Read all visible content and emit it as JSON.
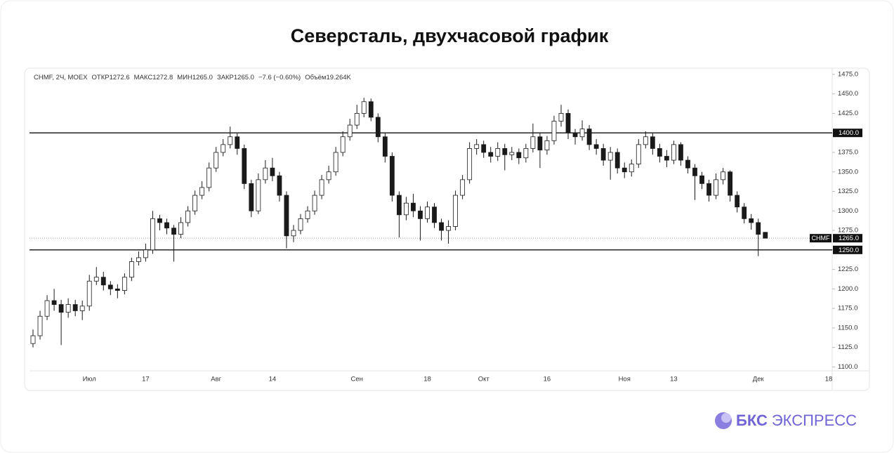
{
  "title": "Северсталь, двухчасовой график",
  "brand": {
    "bold": "БКС",
    "light": "ЭКСПРЕСС"
  },
  "chart_data": {
    "type": "candlestick",
    "legend_header": [
      "CHMF, 2Ч, MOEX",
      "ОТКР1272.6",
      "МАКС1272.8",
      "МИН1265.0",
      "ЗАКР1265.0",
      "−7.6 (−0.60%)",
      "Объём19.264K"
    ],
    "color": "#1a1a1a",
    "categories": [
      null,
      null,
      null,
      null,
      null,
      null,
      null,
      null,
      "Июл",
      null,
      null,
      null,
      null,
      null,
      null,
      null,
      "17",
      null,
      null,
      null,
      null,
      null,
      null,
      null,
      null,
      null,
      "Авг",
      null,
      null,
      null,
      null,
      null,
      null,
      null,
      "14",
      null,
      null,
      null,
      null,
      null,
      null,
      null,
      null,
      null,
      null,
      null,
      "Сен",
      null,
      null,
      null,
      null,
      null,
      null,
      null,
      null,
      null,
      "18",
      null,
      null,
      null,
      null,
      null,
      null,
      null,
      "Окт",
      null,
      null,
      null,
      null,
      null,
      null,
      null,
      null,
      "16",
      null,
      null,
      null,
      null,
      null,
      null,
      null,
      null,
      null,
      null,
      "Ноя",
      null,
      null,
      null,
      null,
      null,
      null,
      "13",
      null,
      null,
      null,
      null,
      null,
      null,
      null,
      null,
      null,
      null,
      null,
      "Дек",
      null,
      null,
      null,
      null,
      null,
      null,
      null,
      null,
      null,
      "18"
    ],
    "open": [
      1130,
      1140,
      1165,
      1185,
      1180,
      1170,
      1180,
      1172,
      1178,
      1210,
      1215,
      1205,
      1200,
      1198,
      1215,
      1235,
      1240,
      1250,
      1290,
      1285,
      1278,
      1270,
      1285,
      1300,
      1320,
      1330,
      1355,
      1375,
      1385,
      1395,
      1380,
      1335,
      1300,
      1340,
      1355,
      1345,
      1320,
      1268,
      1275,
      1290,
      1300,
      1320,
      1340,
      1350,
      1375,
      1395,
      1410,
      1425,
      1440,
      1420,
      1395,
      1370,
      1320,
      1295,
      1310,
      1300,
      1290,
      1305,
      1285,
      1275,
      1280,
      1320,
      1340,
      1380,
      1385,
      1375,
      1370,
      1380,
      1372,
      1375,
      1368,
      1380,
      1395,
      1378,
      1390,
      1415,
      1425,
      1400,
      1395,
      1405,
      1385,
      1380,
      1365,
      1375,
      1355,
      1350,
      1360,
      1385,
      1395,
      1380,
      1370,
      1365,
      1385,
      1365,
      1355,
      1345,
      1335,
      1320,
      1340,
      1350,
      1320,
      1305,
      1290,
      1285,
      1272.6,
      null,
      null,
      null,
      null,
      null,
      null,
      null,
      null,
      null
    ],
    "high": [
      1148,
      1172,
      1192,
      1200,
      1186,
      1188,
      1186,
      1185,
      1218,
      1228,
      1222,
      1210,
      1206,
      1220,
      1240,
      1248,
      1258,
      1300,
      1295,
      1290,
      1282,
      1292,
      1306,
      1326,
      1338,
      1362,
      1382,
      1392,
      1408,
      1400,
      1385,
      1340,
      1348,
      1365,
      1368,
      1350,
      1325,
      1282,
      1296,
      1306,
      1326,
      1346,
      1358,
      1382,
      1402,
      1418,
      1436,
      1445,
      1444,
      1425,
      1400,
      1375,
      1325,
      1318,
      1322,
      1306,
      1312,
      1310,
      1290,
      1288,
      1326,
      1346,
      1388,
      1392,
      1390,
      1382,
      1388,
      1386,
      1382,
      1380,
      1386,
      1412,
      1400,
      1396,
      1422,
      1436,
      1430,
      1405,
      1416,
      1410,
      1392,
      1386,
      1382,
      1380,
      1362,
      1366,
      1392,
      1402,
      1400,
      1386,
      1378,
      1390,
      1388,
      1370,
      1360,
      1350,
      1340,
      1348,
      1355,
      1352,
      1325,
      1310,
      1296,
      1290,
      1272.8,
      null,
      null,
      null,
      null,
      null,
      null,
      null,
      null,
      null
    ],
    "low": [
      1125,
      1135,
      1160,
      1172,
      1128,
      1163,
      1165,
      1160,
      1172,
      1205,
      1198,
      1192,
      1188,
      1193,
      1210,
      1230,
      1235,
      1245,
      1275,
      1270,
      1235,
      1265,
      1280,
      1295,
      1315,
      1325,
      1350,
      1370,
      1380,
      1372,
      1328,
      1292,
      1296,
      1335,
      1338,
      1312,
      1252,
      1260,
      1270,
      1285,
      1295,
      1315,
      1335,
      1345,
      1370,
      1390,
      1405,
      1420,
      1415,
      1388,
      1362,
      1312,
      1266,
      1288,
      1292,
      1262,
      1285,
      1278,
      1262,
      1258,
      1275,
      1315,
      1335,
      1372,
      1368,
      1362,
      1364,
      1352,
      1365,
      1360,
      1362,
      1375,
      1355,
      1372,
      1385,
      1408,
      1392,
      1385,
      1390,
      1378,
      1372,
      1358,
      1340,
      1348,
      1342,
      1344,
      1355,
      1380,
      1372,
      1362,
      1356,
      1360,
      1358,
      1348,
      1314,
      1328,
      1312,
      1315,
      1334,
      1312,
      1298,
      1284,
      1276,
      1242,
      1265,
      null,
      null,
      null,
      null,
      null,
      null,
      null,
      null,
      null
    ],
    "close": [
      1140,
      1165,
      1185,
      1180,
      1170,
      1180,
      1172,
      1178,
      1210,
      1215,
      1205,
      1200,
      1198,
      1215,
      1235,
      1240,
      1250,
      1290,
      1285,
      1278,
      1270,
      1285,
      1300,
      1320,
      1330,
      1355,
      1375,
      1385,
      1395,
      1380,
      1335,
      1300,
      1340,
      1355,
      1345,
      1320,
      1268,
      1275,
      1290,
      1300,
      1320,
      1340,
      1350,
      1375,
      1395,
      1410,
      1425,
      1440,
      1420,
      1395,
      1370,
      1320,
      1295,
      1310,
      1300,
      1290,
      1305,
      1285,
      1275,
      1280,
      1320,
      1340,
      1380,
      1385,
      1375,
      1370,
      1380,
      1372,
      1375,
      1368,
      1380,
      1395,
      1378,
      1390,
      1415,
      1425,
      1400,
      1395,
      1405,
      1385,
      1380,
      1365,
      1375,
      1355,
      1350,
      1360,
      1385,
      1395,
      1380,
      1370,
      1365,
      1385,
      1365,
      1355,
      1345,
      1335,
      1320,
      1340,
      1350,
      1320,
      1305,
      1290,
      1285,
      1270,
      1265,
      null,
      null,
      null,
      null,
      null,
      null,
      null,
      null,
      null
    ],
    "ylim": [
      1095,
      1483
    ],
    "yticks": [
      {
        "value": 1100,
        "label": "1100.0"
      },
      {
        "value": 1125,
        "label": "1125.0"
      },
      {
        "value": 1150,
        "label": "1150.0"
      },
      {
        "value": 1175,
        "label": "1175.0"
      },
      {
        "value": 1200,
        "label": "1200.0"
      },
      {
        "value": 1225,
        "label": "1225.0"
      },
      {
        "value": 1250,
        "label": "1250.0"
      },
      {
        "value": 1275,
        "label": "1275.0"
      },
      {
        "value": 1300,
        "label": "1300.0"
      },
      {
        "value": 1325,
        "label": "1325.0"
      },
      {
        "value": 1350,
        "label": "1350.0"
      },
      {
        "value": 1375,
        "label": "1375.0"
      },
      {
        "value": 1400,
        "label": "1400.0"
      },
      {
        "value": 1425,
        "label": "1425.0"
      },
      {
        "value": 1450,
        "label": "1450.0"
      },
      {
        "value": 1475,
        "label": "1475.0"
      }
    ],
    "levels": [
      {
        "value": 1400,
        "label": "1400.0"
      },
      {
        "value": 1250,
        "label": "1250.0"
      }
    ],
    "last_price": {
      "name": "CHMF",
      "value": 1265,
      "label": "1265.0"
    }
  }
}
